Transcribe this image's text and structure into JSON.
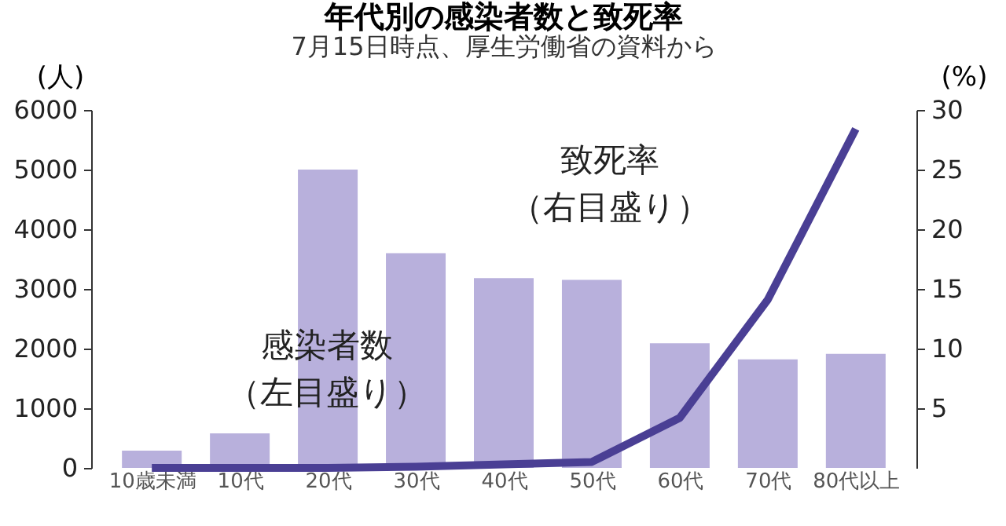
{
  "chart_data": {
    "type": "bar",
    "title": "年代別の感染者数と致死率",
    "subtitle": "7月15日時点、厚生労働省の資料から",
    "ylabel": "(人)",
    "y2label": "(%)",
    "categories": [
      "10歳未満",
      "10代",
      "20代",
      "30代",
      "40代",
      "50代",
      "60代",
      "70代",
      "80代以上"
    ],
    "series": [
      {
        "color": "#b8b0dc",
        "values": [
          290,
          580,
          5000,
          3600,
          3180,
          3150,
          2090,
          1820,
          1910
        ]
      },
      {
        "type": "line",
        "axis": "y2",
        "color": "#4a3f94",
        "values": [
          0,
          0,
          0,
          0.1,
          0.3,
          0.5,
          4.2,
          14.1,
          28.4
        ]
      }
    ],
    "ylim": [
      0,
      6000
    ],
    "yticks": [
      0,
      1000,
      2000,
      3000,
      4000,
      5000,
      6000
    ],
    "y2lim": [
      0,
      30
    ],
    "y2ticks": [
      5,
      10,
      15,
      20,
      25,
      30
    ],
    "grid": false,
    "line_style": "solid",
    "annotations": [
      "致死率",
      "（右目盛り）",
      "感染者数",
      "（左目盛り）"
    ]
  }
}
